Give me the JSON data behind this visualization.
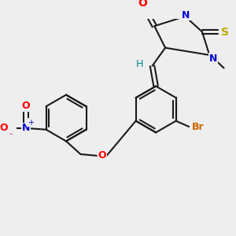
{
  "background_color": "#eeeeee",
  "bond_color": "#1a1a1a",
  "atom_colors": {
    "O": "#ff0000",
    "N": "#0000cc",
    "S": "#bbaa00",
    "Br": "#cc6600",
    "H": "#008888",
    "C": "#1a1a1a",
    "NO2_N": "#0000cc",
    "NO2_O": "#ff0000"
  },
  "figsize": [
    3.0,
    3.0
  ],
  "dpi": 100
}
